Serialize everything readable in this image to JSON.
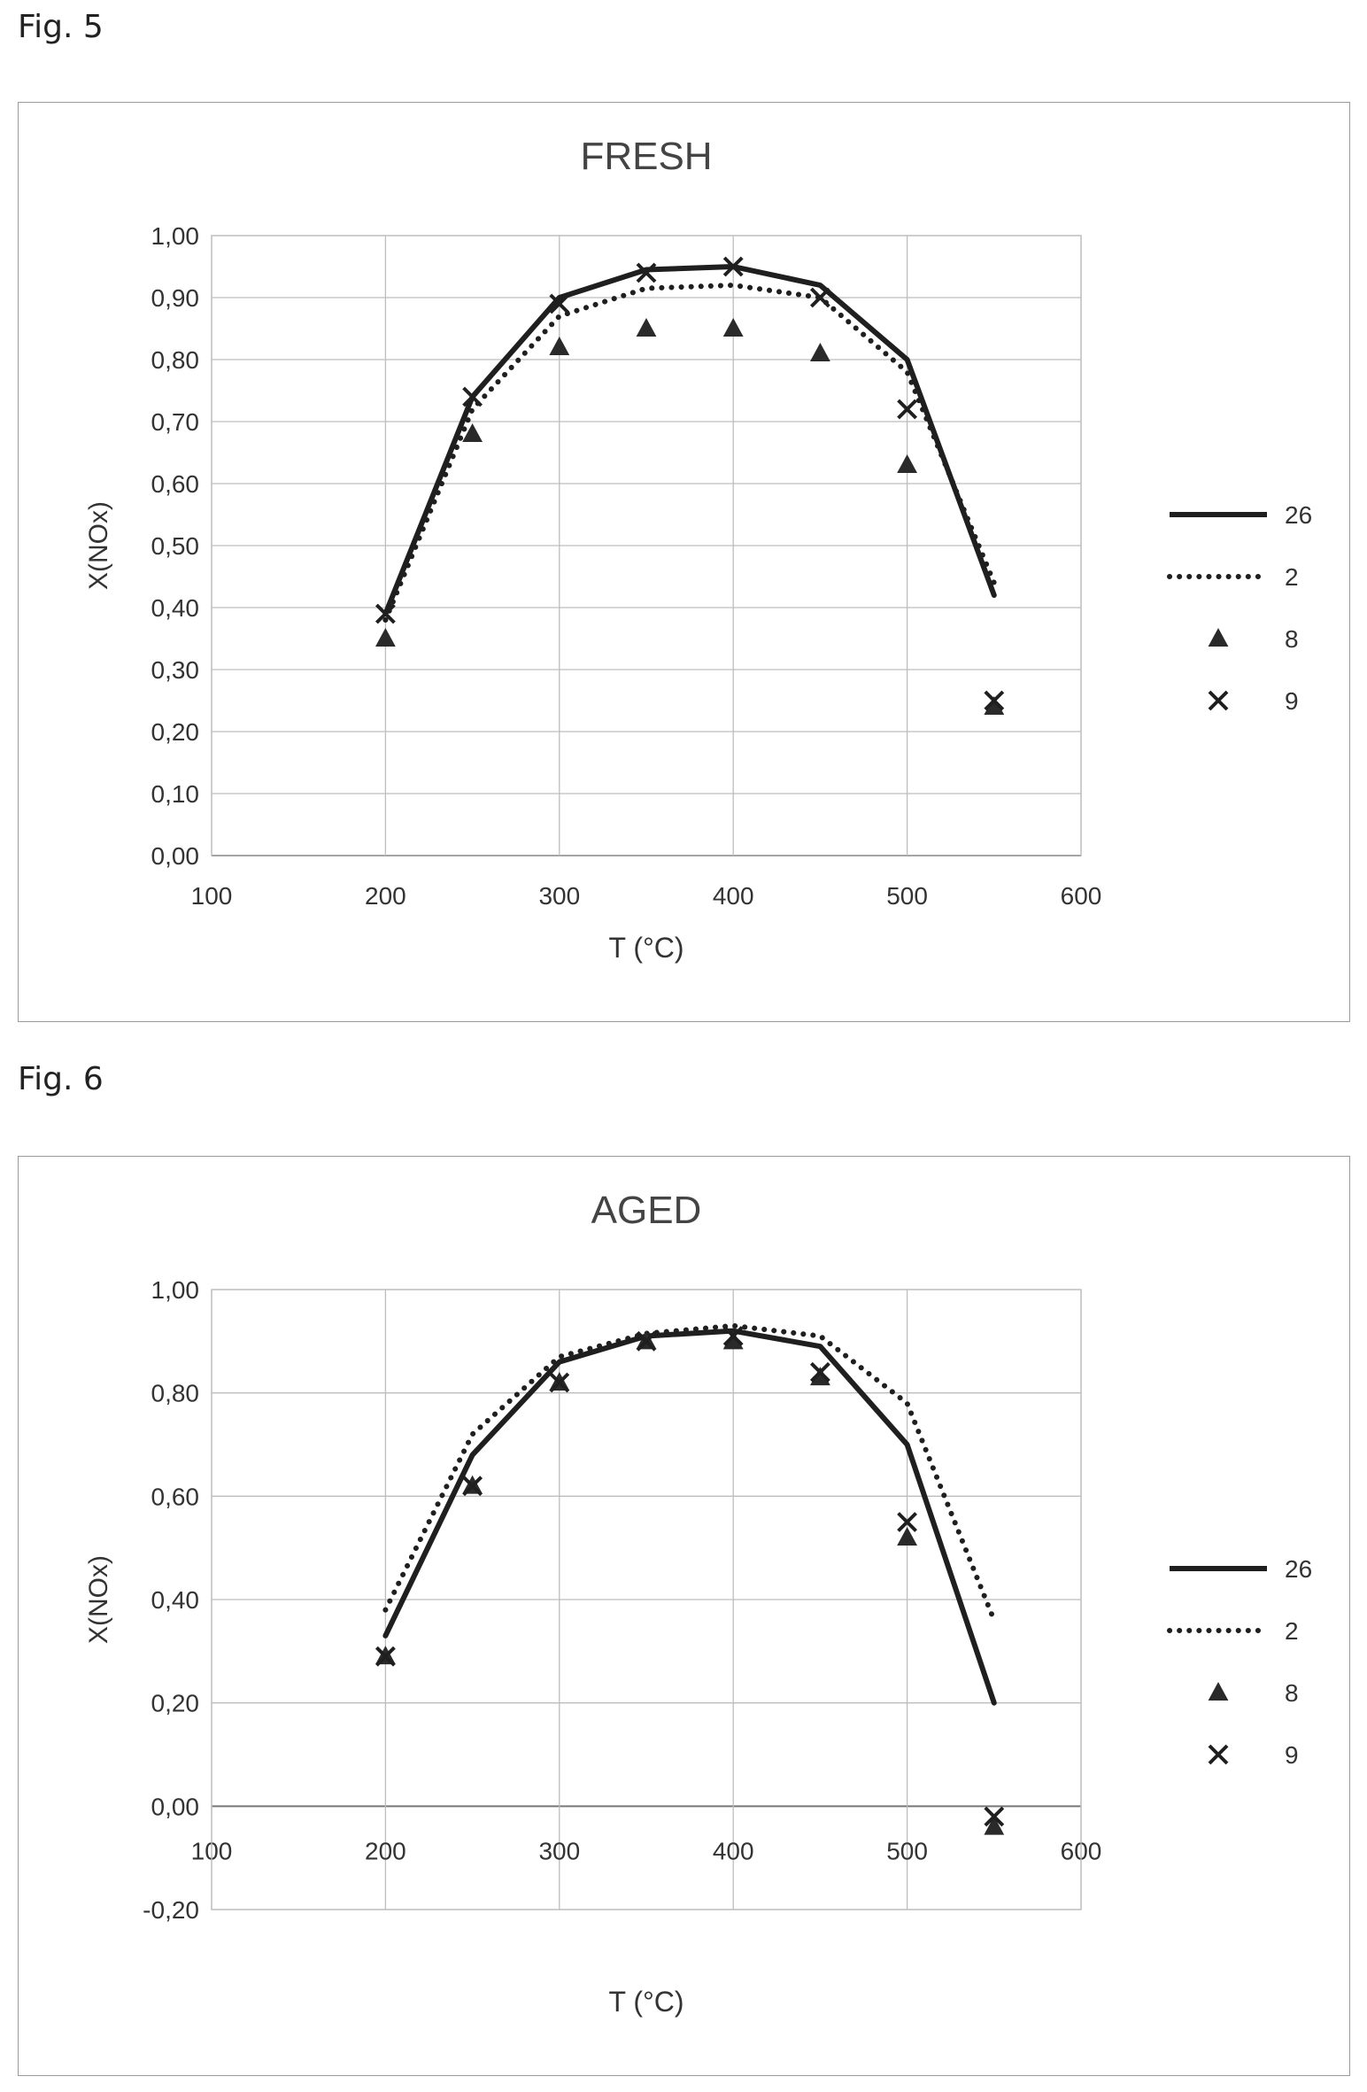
{
  "figures": {
    "fig5": "Fig. 5",
    "fig6": "Fig. 6"
  },
  "chart_data": [
    {
      "type": "line",
      "title": "FRESH",
      "xlabel": "T (°C)",
      "ylabel": "X(NOx)",
      "xlim": [
        100,
        600
      ],
      "ylim": [
        0,
        1
      ],
      "x_ticks": [
        "100",
        "200",
        "300",
        "400",
        "500",
        "600"
      ],
      "y_ticks": [
        "0,00",
        "0,10",
        "0,20",
        "0,30",
        "0,40",
        "0,50",
        "0,60",
        "0,70",
        "0,80",
        "0,90",
        "1,00"
      ],
      "grid": true,
      "legend_position": "right",
      "series": [
        {
          "name": "26",
          "style": "solid-line",
          "x": [
            200,
            250,
            300,
            350,
            400,
            450,
            500,
            550
          ],
          "y": [
            0.39,
            0.74,
            0.9,
            0.945,
            0.95,
            0.92,
            0.8,
            0.42
          ]
        },
        {
          "name": "2",
          "style": "dotted-line",
          "x": [
            200,
            250,
            300,
            350,
            400,
            450,
            500,
            550
          ],
          "y": [
            0.38,
            0.72,
            0.87,
            0.915,
            0.92,
            0.9,
            0.78,
            0.44
          ]
        },
        {
          "name": "8",
          "style": "triangle-marker",
          "x": [
            200,
            250,
            300,
            350,
            400,
            450,
            500,
            550
          ],
          "y": [
            0.35,
            0.68,
            0.82,
            0.85,
            0.85,
            0.81,
            0.63,
            0.24
          ]
        },
        {
          "name": "9",
          "style": "x-marker",
          "x": [
            200,
            250,
            300,
            350,
            400,
            450,
            500,
            550
          ],
          "y": [
            0.39,
            0.74,
            0.89,
            0.94,
            0.95,
            0.9,
            0.72,
            0.25
          ]
        }
      ]
    },
    {
      "type": "line",
      "title": "AGED",
      "xlabel": "T (°C)",
      "ylabel": "X(NOx)",
      "xlim": [
        100,
        600
      ],
      "ylim": [
        -0.2,
        1
      ],
      "x_ticks": [
        "100",
        "200",
        "300",
        "400",
        "500",
        "600"
      ],
      "y_ticks": [
        "-0,20",
        "0,00",
        "0,20",
        "0,40",
        "0,60",
        "0,80",
        "1,00"
      ],
      "grid": true,
      "legend_position": "right",
      "series": [
        {
          "name": "26",
          "style": "solid-line",
          "x": [
            200,
            250,
            300,
            350,
            400,
            450,
            500,
            550
          ],
          "y": [
            0.33,
            0.68,
            0.86,
            0.91,
            0.92,
            0.89,
            0.7,
            0.2
          ]
        },
        {
          "name": "2",
          "style": "dotted-line",
          "x": [
            200,
            250,
            300,
            350,
            400,
            450,
            500,
            550
          ],
          "y": [
            0.38,
            0.72,
            0.87,
            0.915,
            0.93,
            0.91,
            0.78,
            0.36
          ]
        },
        {
          "name": "8",
          "style": "triangle-marker",
          "x": [
            200,
            250,
            300,
            350,
            400,
            450,
            500,
            550
          ],
          "y": [
            0.29,
            0.62,
            0.82,
            0.9,
            0.9,
            0.83,
            0.52,
            -0.04
          ]
        },
        {
          "name": "9",
          "style": "x-marker",
          "x": [
            200,
            250,
            300,
            350,
            400,
            450,
            500,
            550
          ],
          "y": [
            0.29,
            0.62,
            0.82,
            0.9,
            0.91,
            0.84,
            0.55,
            -0.02
          ]
        }
      ]
    }
  ]
}
